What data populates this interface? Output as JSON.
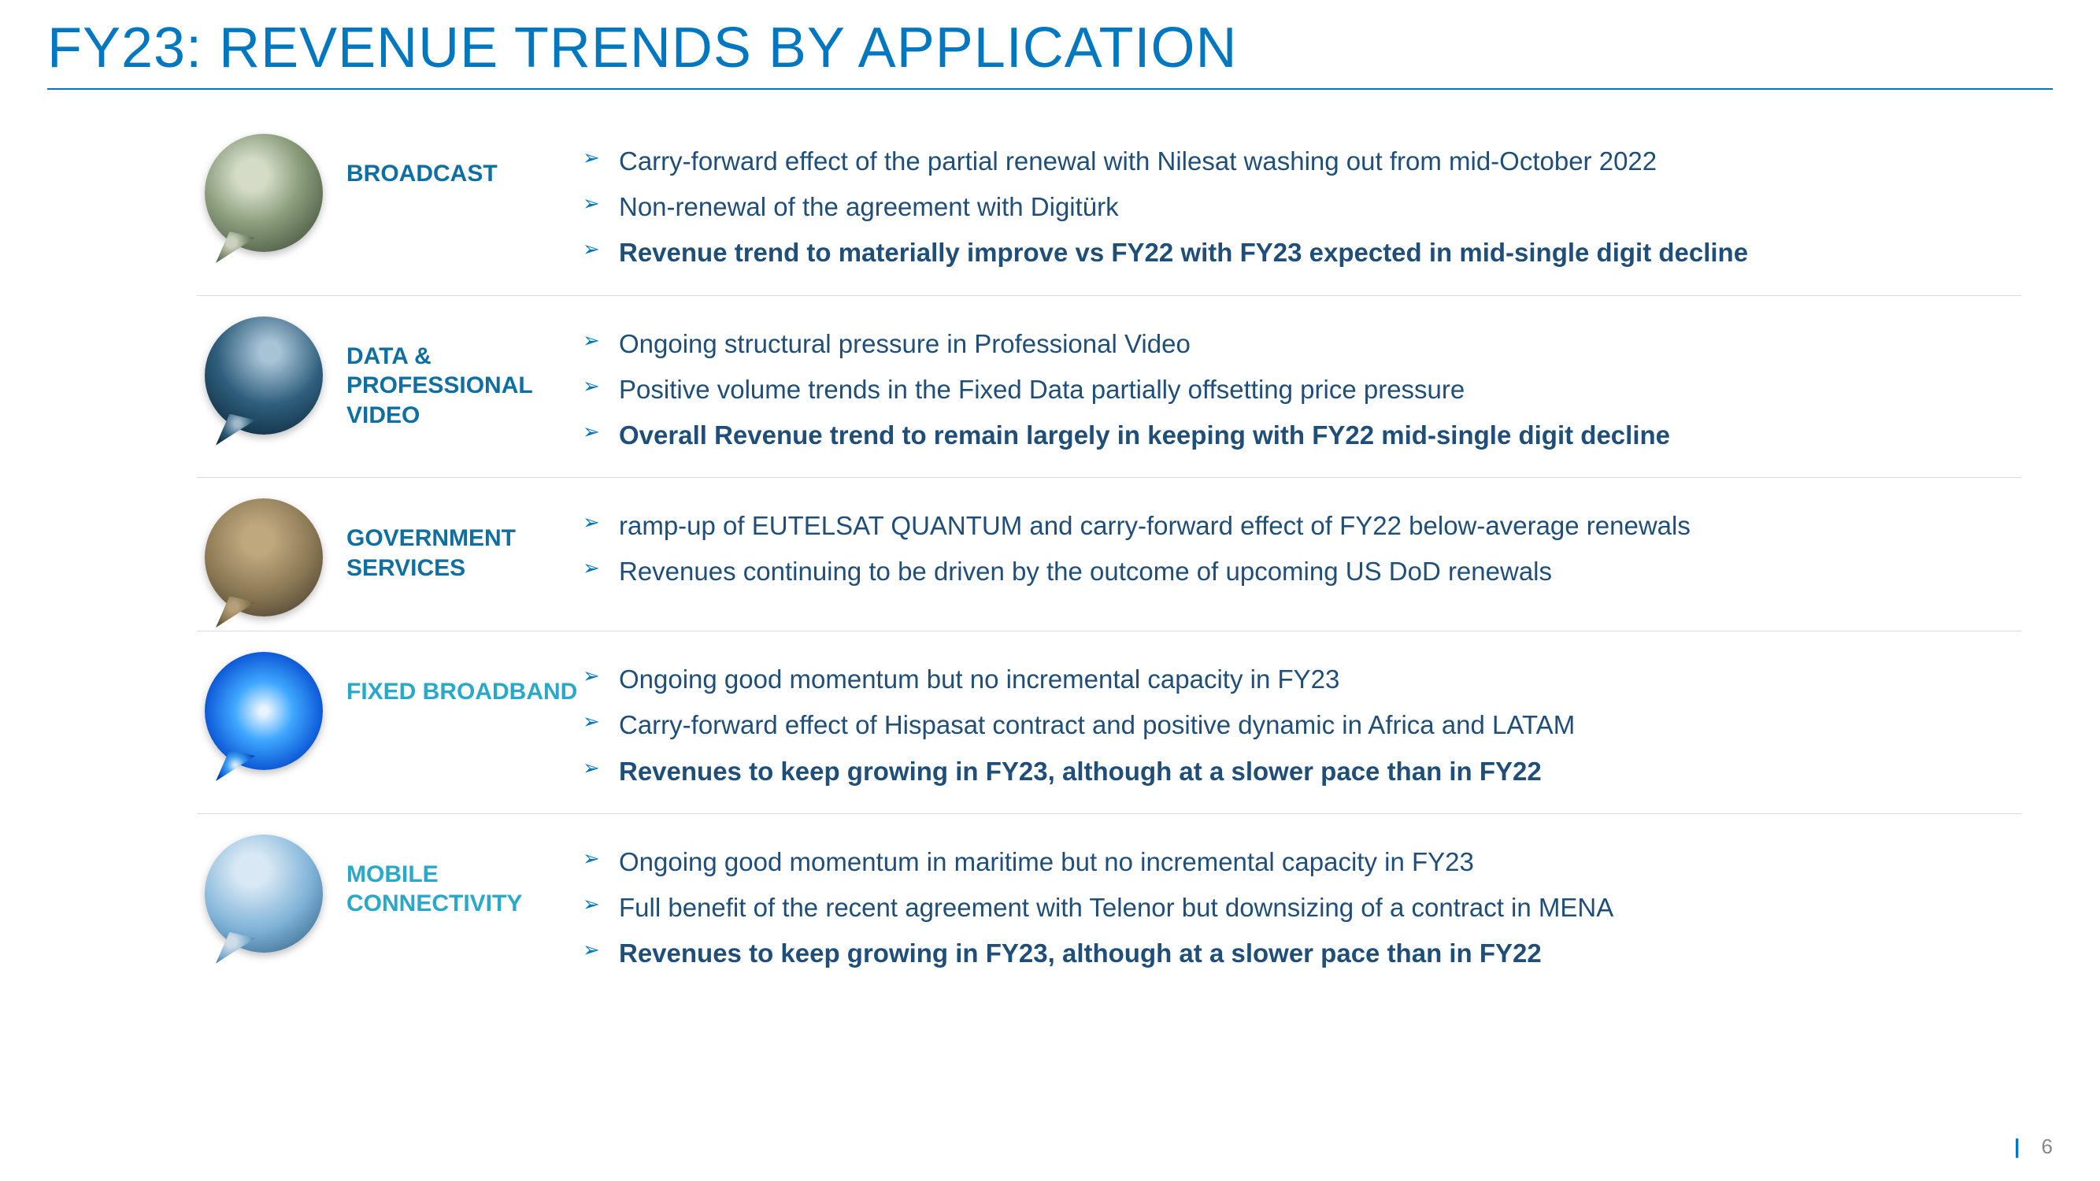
{
  "title": "FY23: REVENUE TRENDS BY APPLICATION",
  "title_color": "#0077be",
  "page_number": "6",
  "label_colors": {
    "broadcast": "#0f6fa0",
    "data": "#0f6fa0",
    "government": "#0f6fa0",
    "fixed": "#2aa8c9",
    "mobile": "#2aa8c9"
  },
  "sections": [
    {
      "id": "broadcast",
      "label": "BROADCAST",
      "bubble_class": "bubble-broadcast",
      "bullets": [
        {
          "text": "Carry-forward effect of the partial renewal with Nilesat washing out from mid-October 2022",
          "bold": false
        },
        {
          "text": "Non-renewal of the agreement with Digitürk",
          "bold": false
        },
        {
          "text": "Revenue trend to materially improve vs FY22 with FY23 expected in mid-single digit decline",
          "bold": true
        }
      ]
    },
    {
      "id": "data",
      "label": "DATA & PROFESSIONAL VIDEO",
      "bubble_class": "bubble-data",
      "bullets": [
        {
          "text": "Ongoing structural pressure in Professional Video",
          "bold": false
        },
        {
          "text": "Positive volume trends in the Fixed Data partially offsetting price pressure",
          "bold": false
        },
        {
          "text": "Overall Revenue trend to remain largely in keeping with FY22 mid-single digit decline",
          "bold": true
        }
      ]
    },
    {
      "id": "government",
      "label": "GOVERNMENT SERVICES",
      "bubble_class": "bubble-gov",
      "bullets": [
        {
          "text": "ramp-up of EUTELSAT QUANTUM and carry-forward effect of FY22 below-average renewals",
          "bold": false
        },
        {
          "text": "Revenues continuing to be driven by the outcome of upcoming US DoD renewals",
          "bold": false
        }
      ]
    },
    {
      "id": "fixed",
      "label": "FIXED BROADBAND",
      "bubble_class": "bubble-fixed",
      "bullets": [
        {
          "text": "Ongoing good momentum but no incremental capacity in FY23",
          "bold": false
        },
        {
          "text": "Carry-forward effect of Hispasat contract and positive dynamic in Africa and LATAM",
          "bold": false
        },
        {
          "text": "Revenues to keep growing in FY23, although at a slower pace than in FY22",
          "bold": true
        }
      ]
    },
    {
      "id": "mobile",
      "label": "MOBILE CONNECTIVITY",
      "bubble_class": "bubble-mobile",
      "bullets": [
        {
          "text": "Ongoing good momentum in maritime but no incremental capacity in FY23",
          "bold": false
        },
        {
          "text": "Full benefit of the recent agreement with Telenor but downsizing of a contract in MENA",
          "bold": false
        },
        {
          "text": "Revenues to keep growing in FY23, although at a slower pace than in FY22",
          "bold": true
        }
      ]
    }
  ]
}
